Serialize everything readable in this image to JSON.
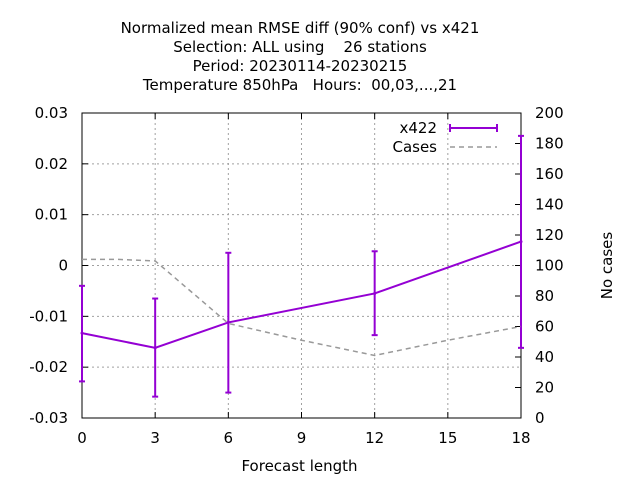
{
  "chart_data": {
    "type": "line",
    "title_lines": [
      "Normalized mean RMSE diff (90% conf) vs x421",
      "Selection: ALL using    26 stations",
      "Period: 20230114-20230215",
      "Temperature 850hPa   Hours:  00,03,...,21"
    ],
    "xlabel": "Forecast length",
    "ylabel": "",
    "y2label": "No cases",
    "x_ticks": [
      0,
      3,
      6,
      9,
      12,
      15,
      18
    ],
    "y_ticks": [
      -0.03,
      -0.02,
      -0.01,
      0,
      0.01,
      0.02,
      0.03
    ],
    "y_tick_labels": [
      "-0.03",
      "-0.02",
      "-0.01",
      "0",
      "0.01",
      "0.02",
      "0.03"
    ],
    "y2_ticks": [
      0,
      20,
      40,
      60,
      80,
      100,
      120,
      140,
      160,
      180,
      200
    ],
    "xlim": [
      0,
      18
    ],
    "ylim": [
      -0.03,
      0.03
    ],
    "y2lim": [
      0,
      200
    ],
    "grid": true,
    "legend_position": "top-right",
    "series": [
      {
        "name": "x422",
        "axis": "left",
        "color": "#9400d3",
        "style": "solid-errorbars",
        "x": [
          0,
          3,
          6,
          12,
          18
        ],
        "y": [
          -0.0133,
          -0.0162,
          -0.0112,
          -0.0055,
          0.0047
        ],
        "y_low": [
          -0.0228,
          -0.0258,
          -0.025,
          -0.0137,
          -0.0162
        ],
        "y_high": [
          -0.004,
          -0.0065,
          0.0025,
          0.0028,
          0.0255
        ]
      },
      {
        "name": "Cases",
        "axis": "right",
        "color": "#999999",
        "style": "dashed",
        "x": [
          0,
          1.5,
          3,
          6,
          9,
          12,
          15,
          18
        ],
        "y": [
          104,
          104,
          103,
          62,
          51,
          41,
          51,
          60
        ]
      }
    ]
  }
}
